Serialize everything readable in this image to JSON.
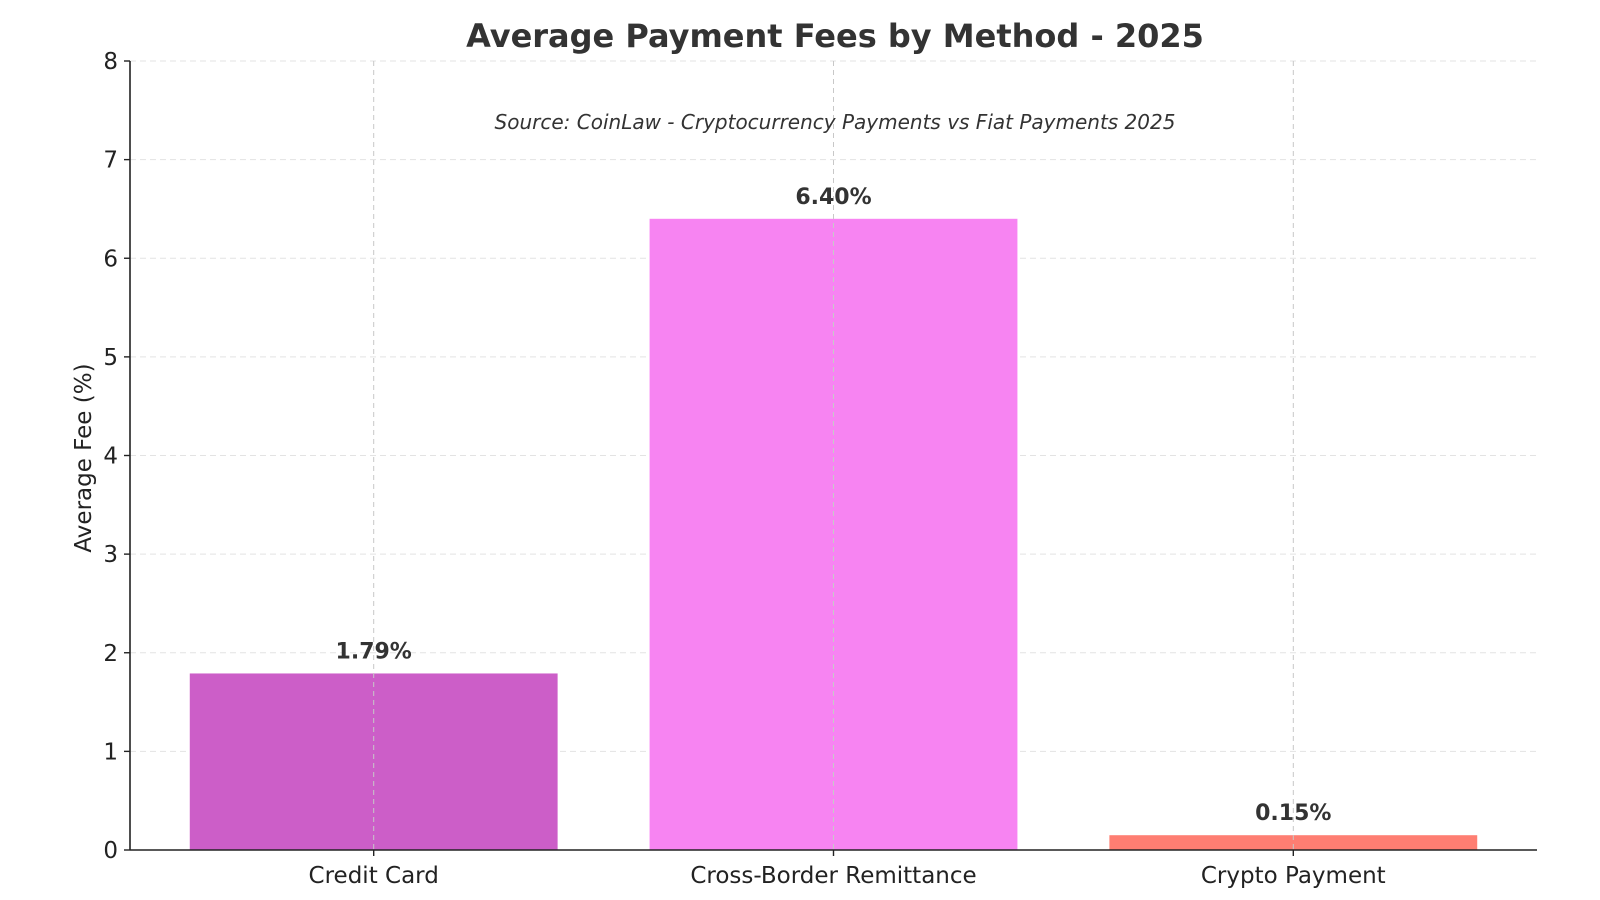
{
  "chart_data": {
    "type": "bar",
    "title": "Average Payment Fees by Method - 2025",
    "subtitle": "Source: CoinLaw - Cryptocurrency Payments vs Fiat Payments 2025",
    "xlabel": "",
    "ylabel": "Average Fee (%)",
    "categories": [
      "Credit Card",
      "Cross-Border Remittance",
      "Crypto Payment"
    ],
    "values": [
      1.79,
      6.4,
      0.15
    ],
    "data_labels": [
      "1.79%",
      "6.40%",
      "0.15%"
    ],
    "colors": [
      "#cc5ec8",
      "#f784f2",
      "#fe7e72"
    ],
    "ylim": [
      0,
      8
    ],
    "yticks": [
      0,
      1,
      2,
      3,
      4,
      5,
      6,
      7,
      8
    ],
    "grid": true,
    "legend": "none"
  }
}
